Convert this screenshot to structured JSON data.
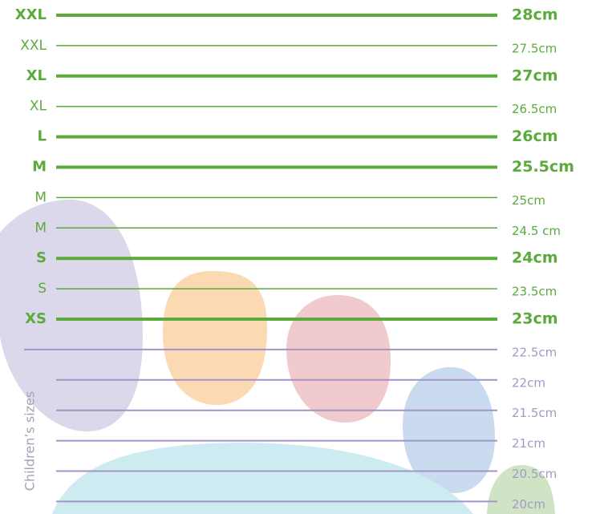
{
  "rows": [
    {
      "label": "XXL",
      "size": "28cm",
      "bold": true
    },
    {
      "label": "XXL",
      "size": "27.5cm",
      "bold": false
    },
    {
      "label": "XL",
      "size": "27cm",
      "bold": true
    },
    {
      "label": "XL",
      "size": "26.5cm",
      "bold": false
    },
    {
      "label": "L",
      "size": "26cm",
      "bold": true
    },
    {
      "label": "M",
      "size": "25.5cm",
      "bold": true
    },
    {
      "label": "M",
      "size": "25cm",
      "bold": false
    },
    {
      "label": "M",
      "size": "24.5 cm",
      "bold": false
    },
    {
      "label": "S",
      "size": "24cm",
      "bold": true
    },
    {
      "label": "S",
      "size": "23.5cm",
      "bold": false
    },
    {
      "label": "XS",
      "size": "23cm",
      "bold": true
    }
  ],
  "children": {
    "label": "Children’s sizes",
    "sizes": [
      "22.5cm",
      "22cm",
      "21.5cm",
      "21cm",
      "20.5cm",
      "20cm"
    ]
  }
}
